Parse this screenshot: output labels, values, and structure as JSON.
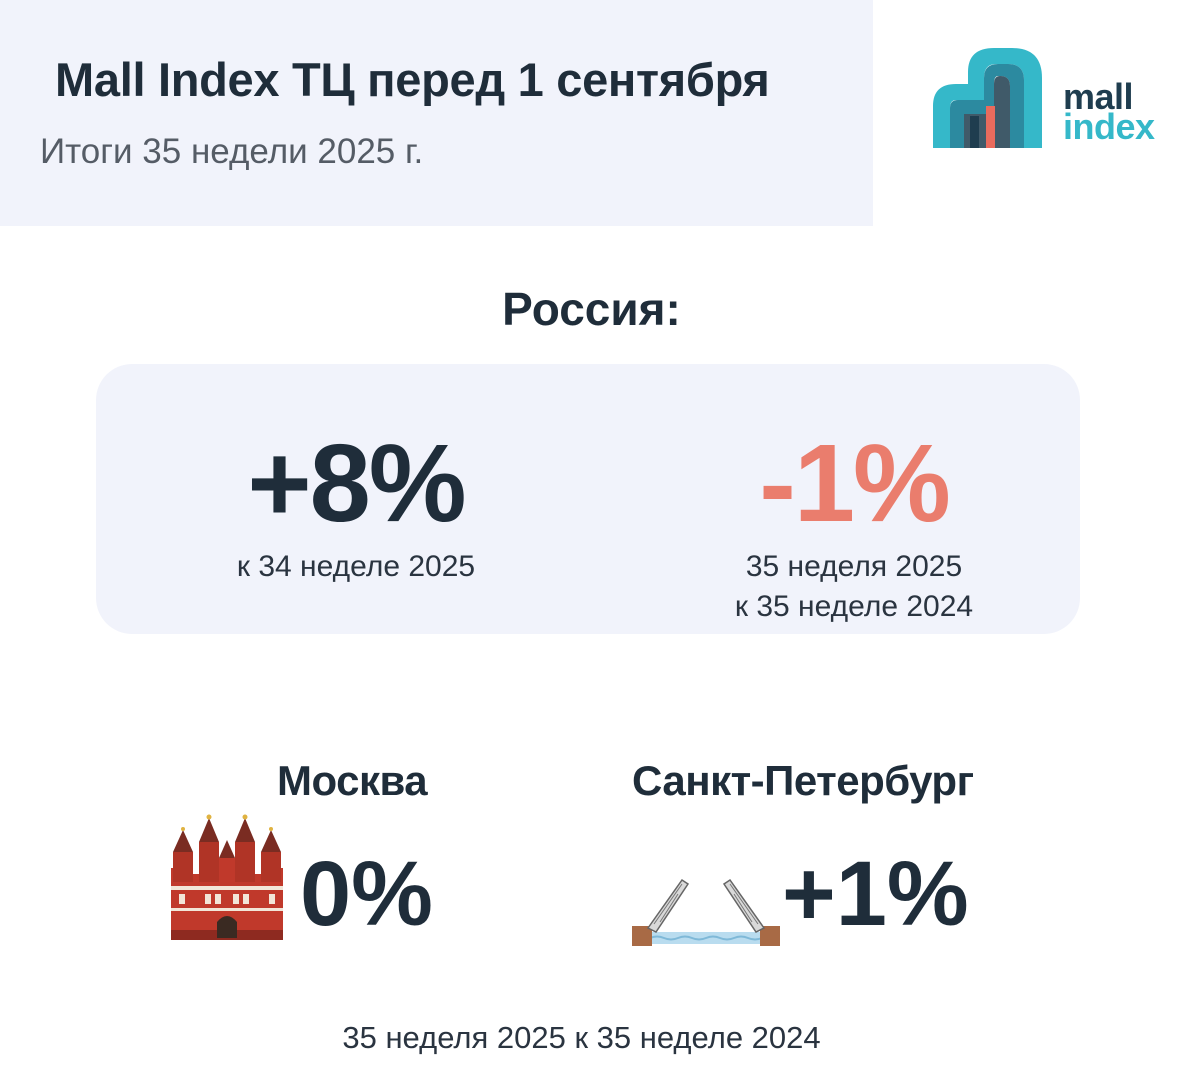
{
  "header": {
    "title": "Mall Index ТЦ перед 1 сентября",
    "subtitle": "Итоги 35 недели 2025 г."
  },
  "logo": {
    "word1": "mall",
    "word2": "index",
    "colors": {
      "dark": "#1f3d4f",
      "teal": "#35b8c9",
      "accent": "#ea6b5d"
    }
  },
  "russia": {
    "title": "Россия:",
    "weekly": {
      "value": "+8%",
      "caption": "к 34 неделе 2025"
    },
    "yearly": {
      "value": "-1%",
      "caption_line1": "35 неделя 2025",
      "caption_line2": "к 35 неделе 2024"
    }
  },
  "cities": [
    {
      "name": "Москва",
      "value": "0%",
      "icon": "kremlin-icon"
    },
    {
      "name": "Санкт-Петербург",
      "value": "+1%",
      "icon": "drawbridge-icon"
    }
  ],
  "footer": "35 неделя 2025 к 35 неделе 2024",
  "colors": {
    "primary_text": "#1f2d3a",
    "negative": "#ea7d6d",
    "panel_bg": "#f1f3fb"
  }
}
